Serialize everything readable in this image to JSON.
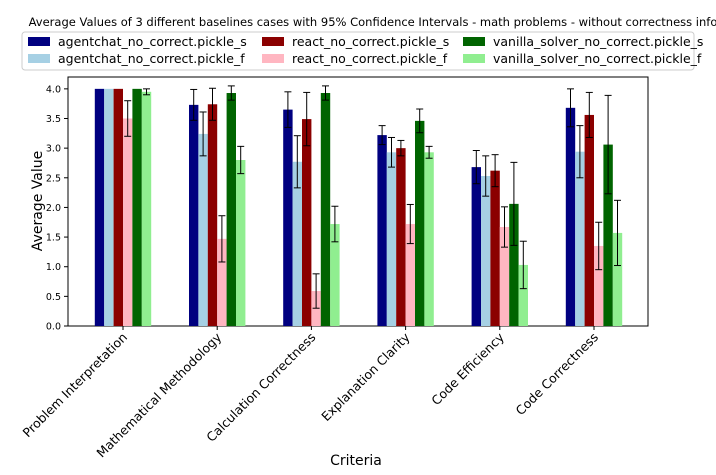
{
  "chart_data": {
    "type": "bar",
    "title": "Average Values of 3 different baselines cases with 95% Confidence Intervals - math problems - without correctness info",
    "xlabel": "Criteria",
    "ylabel": "Average Value",
    "ylim": [
      0,
      4.2
    ],
    "yticks": [
      "0.0",
      "0.5",
      "1.0",
      "1.5",
      "2.0",
      "2.5",
      "3.0",
      "3.5",
      "4.0"
    ],
    "grid": false,
    "legend_position": "top",
    "categories": [
      "Problem Interpretation",
      "Mathematical Methodology",
      "Calculation Correctness",
      "Explanation Clarity",
      "Code Efficiency",
      "Code Correctness"
    ],
    "series": [
      {
        "name": "agentchat_no_correct.pickle_s",
        "color": "#000080",
        "values": [
          4.0,
          3.73,
          3.65,
          3.22,
          2.68,
          3.68
        ],
        "err": [
          0,
          0.26,
          0.3,
          0.16,
          0.28,
          0.32
        ]
      },
      {
        "name": "agentchat_no_correct.pickle_f",
        "color": "#a6d0e4",
        "values": [
          4.0,
          3.24,
          2.77,
          2.93,
          2.53,
          2.94
        ],
        "err": [
          0,
          0.37,
          0.44,
          0.25,
          0.34,
          0.44
        ]
      },
      {
        "name": "react_no_correct.pickle_s",
        "color": "#8b0000",
        "values": [
          4.0,
          3.74,
          3.49,
          3.0,
          2.62,
          3.56
        ],
        "err": [
          0,
          0.27,
          0.45,
          0.13,
          0.27,
          0.38
        ]
      },
      {
        "name": "react_no_correct.pickle_f",
        "color": "#ffb6c1",
        "values": [
          3.5,
          1.47,
          0.59,
          1.72,
          1.67,
          1.35
        ],
        "err": [
          0.3,
          0.39,
          0.29,
          0.33,
          0.34,
          0.4
        ]
      },
      {
        "name": "vanilla_solver_no_correct.pickle_s",
        "color": "#006400",
        "values": [
          4.0,
          3.93,
          3.93,
          3.46,
          2.06,
          3.06
        ],
        "err": [
          0,
          0.12,
          0.12,
          0.2,
          0.7,
          0.83
        ]
      },
      {
        "name": "vanilla_solver_no_correct.pickle_f",
        "color": "#90ee90",
        "values": [
          3.95,
          2.8,
          1.72,
          2.93,
          1.03,
          1.57
        ],
        "err": [
          0.05,
          0.23,
          0.3,
          0.1,
          0.4,
          0.55
        ]
      }
    ]
  }
}
